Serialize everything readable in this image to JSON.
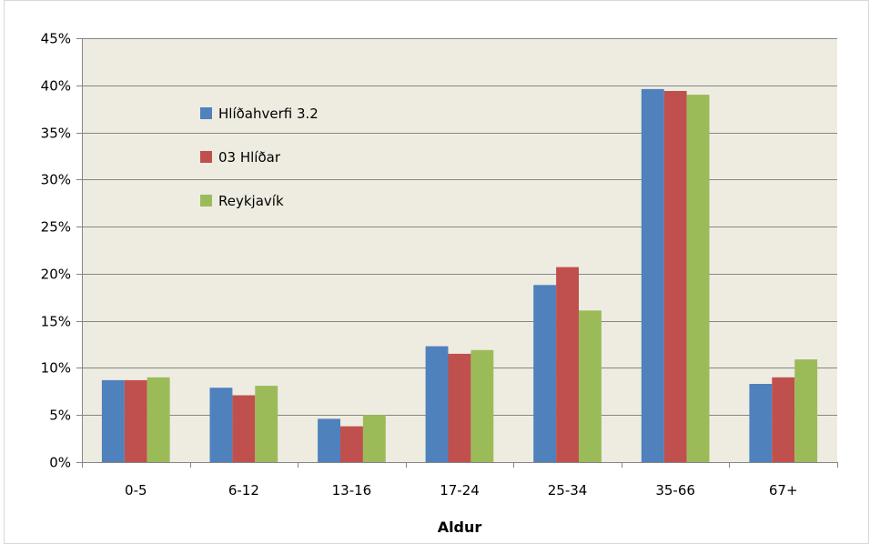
{
  "chart_data": {
    "type": "bar",
    "title": "",
    "xlabel": "Aldur",
    "ylabel": "",
    "categories": [
      "0-5",
      "6-12",
      "13-16",
      "17-24",
      "25-34",
      "35-66",
      "67+"
    ],
    "series": [
      {
        "name": "Hlíðahverfi 3.2",
        "color": "#4f81bd",
        "values": [
          0.087,
          0.079,
          0.046,
          0.123,
          0.188,
          0.396,
          0.083
        ]
      },
      {
        "name": "03 Hlíðar",
        "color": "#c0504d",
        "values": [
          0.087,
          0.071,
          0.038,
          0.115,
          0.207,
          0.394,
          0.09
        ]
      },
      {
        "name": "Reykjavík",
        "color": "#9bbb59",
        "values": [
          0.09,
          0.081,
          0.05,
          0.119,
          0.161,
          0.39,
          0.109
        ]
      }
    ],
    "ylim": [
      0,
      0.45
    ],
    "yticks": [
      0,
      0.05,
      0.1,
      0.15,
      0.2,
      0.25,
      0.3,
      0.35,
      0.4,
      0.45
    ],
    "ytick_labels": [
      "0%",
      "5%",
      "10%",
      "15%",
      "20%",
      "25%",
      "30%",
      "35%",
      "40%",
      "45%"
    ],
    "grid": true,
    "legend_position": "top-left inside plot area",
    "plot_background": "#eeece1",
    "gridline_color": "#868686"
  }
}
